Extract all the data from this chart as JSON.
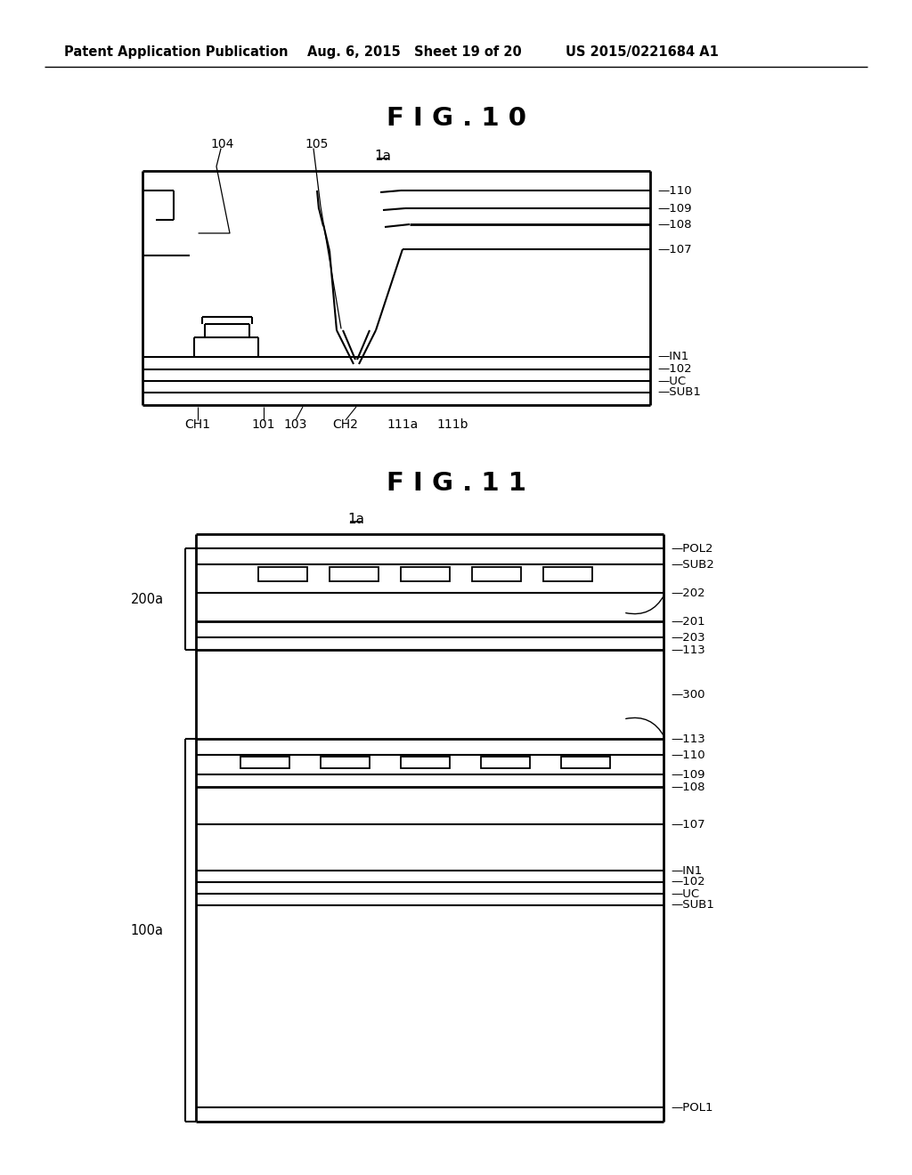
{
  "bg_color": "#ffffff",
  "text_color": "#000000",
  "header_left": "Patent Application Publication",
  "header_mid": "Aug. 6, 2015   Sheet 19 of 20",
  "header_right": "US 2015/0221684 A1",
  "fig10_title": "F I G . 1 0",
  "fig11_title": "F I G . 1 1",
  "label_1a": "1a"
}
